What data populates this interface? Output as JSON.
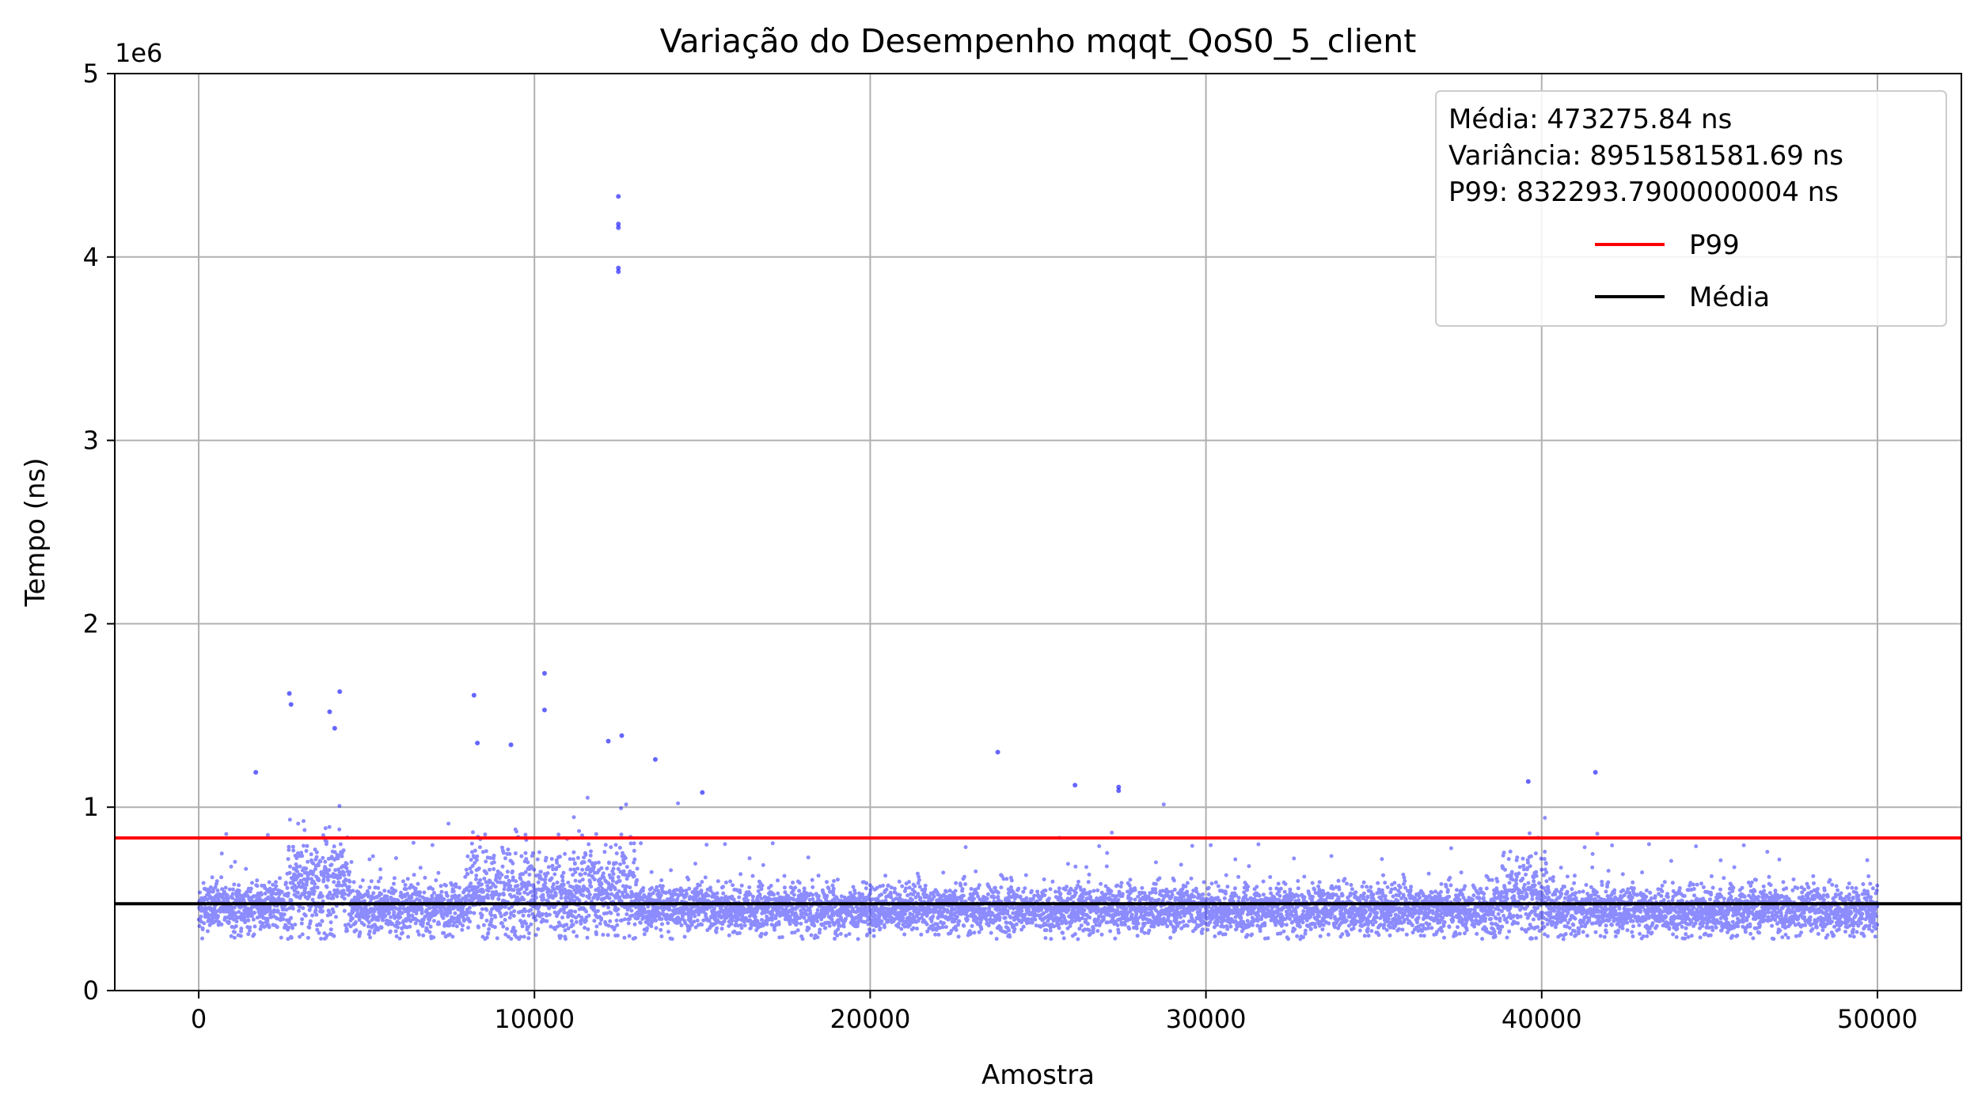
{
  "chart_data": {
    "type": "scatter",
    "title": "Variação do Desempenho mqqt_QoS0_5_client",
    "xlabel": "Amostra",
    "ylabel": "Tempo (ns)",
    "y_offset_label": "1e6",
    "xlim": [
      -2500,
      52500
    ],
    "ylim": [
      0,
      5000000
    ],
    "x_ticks": [
      0,
      10000,
      20000,
      30000,
      40000,
      50000
    ],
    "x_tick_labels": [
      "0",
      "10000",
      "20000",
      "30000",
      "40000",
      "50000"
    ],
    "y_ticks": [
      0,
      1000000,
      2000000,
      3000000,
      4000000,
      5000000
    ],
    "y_tick_labels": [
      "0",
      "1",
      "2",
      "3",
      "4",
      "5"
    ],
    "grid": true,
    "legend_position": "top-right",
    "legend_stats": [
      "Média: 473275.84 ns",
      "Variância: 8951581581.69 ns",
      "P99: 832293.7900000004 ns"
    ],
    "series": [
      {
        "kind": "scatter",
        "color": "#0000ff",
        "n_samples": 50000,
        "x_range": [
          0,
          50000
        ],
        "typical_band": [
          300000,
          650000
        ],
        "notable_points": [
          {
            "x": 12500,
            "y": 4330000
          },
          {
            "x": 12500,
            "y": 4180000
          },
          {
            "x": 12500,
            "y": 4160000
          },
          {
            "x": 12500,
            "y": 3940000
          },
          {
            "x": 12500,
            "y": 3920000
          },
          {
            "x": 10300,
            "y": 1730000
          },
          {
            "x": 10300,
            "y": 1530000
          },
          {
            "x": 4200,
            "y": 1630000
          },
          {
            "x": 2700,
            "y": 1620000
          },
          {
            "x": 8200,
            "y": 1610000
          },
          {
            "x": 2750,
            "y": 1560000
          },
          {
            "x": 3900,
            "y": 1520000
          },
          {
            "x": 4050,
            "y": 1430000
          },
          {
            "x": 12600,
            "y": 1390000
          },
          {
            "x": 12200,
            "y": 1360000
          },
          {
            "x": 8300,
            "y": 1350000
          },
          {
            "x": 9300,
            "y": 1340000
          },
          {
            "x": 23800,
            "y": 1300000
          },
          {
            "x": 13600,
            "y": 1260000
          },
          {
            "x": 41600,
            "y": 1190000
          },
          {
            "x": 1700,
            "y": 1190000
          },
          {
            "x": 26100,
            "y": 1120000
          },
          {
            "x": 27400,
            "y": 1110000
          },
          {
            "x": 27400,
            "y": 1090000
          },
          {
            "x": 39600,
            "y": 1140000
          },
          {
            "x": 15000,
            "y": 1080000
          }
        ]
      },
      {
        "name": "P99",
        "kind": "hline",
        "y": 832293.79,
        "color": "#ff0000"
      },
      {
        "name": "Média",
        "kind": "hline",
        "y": 473275.84,
        "color": "#000000"
      }
    ]
  }
}
